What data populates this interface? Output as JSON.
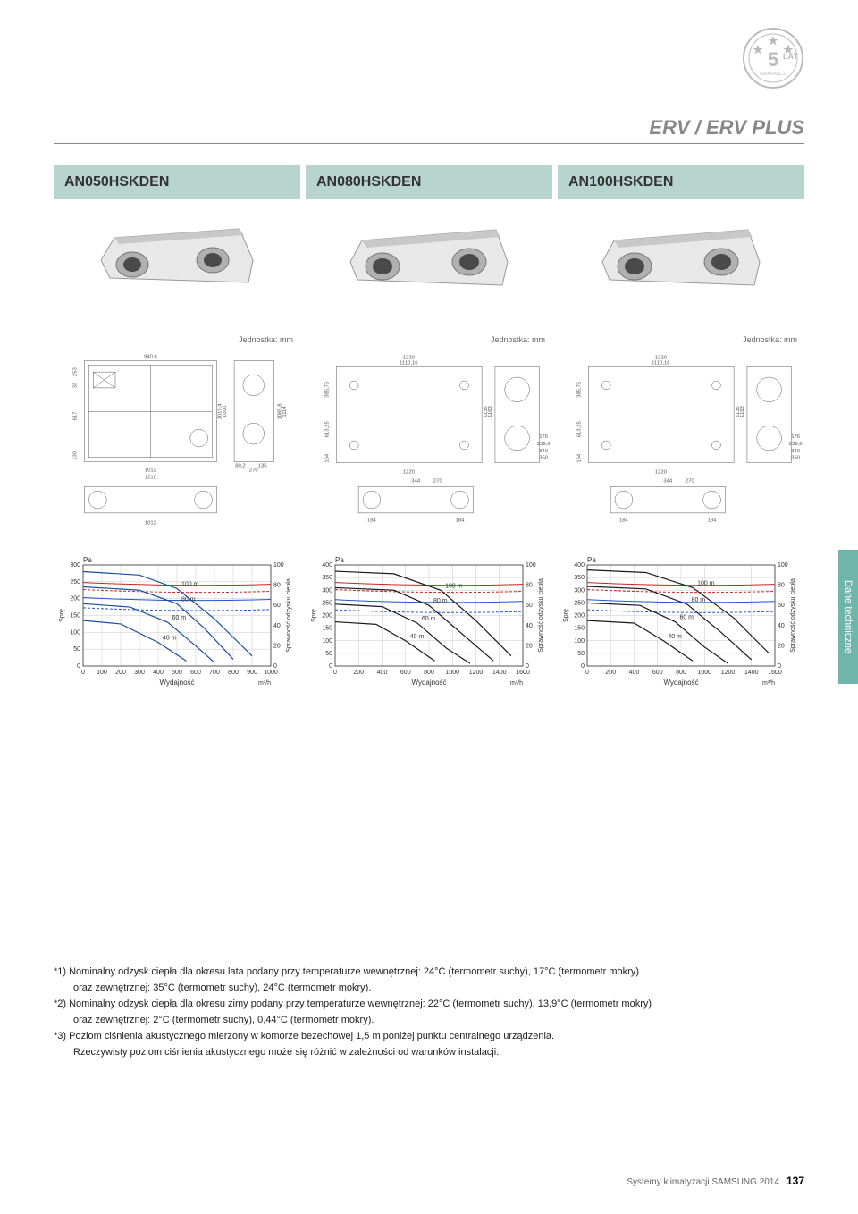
{
  "warranty": {
    "years": "5",
    "unit": "LAT",
    "sub": "GWARANCJI"
  },
  "header": {
    "title": "ERV / ERV PLUS"
  },
  "products": [
    {
      "model": "AN050HSKDEN"
    },
    {
      "model": "AN080HSKDEN"
    },
    {
      "model": "AN100HSKDEN"
    }
  ],
  "unit_label": "Jednostka: mm",
  "drawings": [
    {
      "dims": {
        "w_top": "940,6",
        "left_h": "253",
        "left_h2": "32",
        "left_h3": "617",
        "left_h4": "130",
        "inner_w": "1012",
        "outer_w": "1210",
        "right_h": "1000",
        "right_h2": "1019,4",
        "right_h3": "1085,8",
        "right_h4": "1114",
        "right_w": "270",
        "side1": "80,2",
        "side2": "135",
        "bottom_w": "1012"
      }
    },
    {
      "dims": {
        "top_w": "1220",
        "top_w2": "1110,16",
        "left_h": "385,75",
        "left_h2": "613,25",
        "left_h3": "164",
        "right_h": "1135",
        "right_h2": "1163",
        "side1": "176",
        "side2": "239,6",
        "side3": "340",
        "side4": "350",
        "bottom_w": "1220",
        "b1": "184",
        "b2": "344",
        "b3": "270"
      }
    },
    {
      "dims": {
        "top_w": "1220",
        "top_w2": "1110,16",
        "left_h": "385,75",
        "left_h2": "613,25",
        "left_h3": "164",
        "right_h": "1135",
        "right_h2": "1163",
        "side1": "176",
        "side2": "239,6",
        "side3": "340",
        "side4": "350",
        "bottom_w": "1220",
        "b1": "184",
        "b2": "344",
        "b3": "270"
      }
    }
  ],
  "charts": [
    {
      "type": "line",
      "y_label": "Pa",
      "y_left_label": "Sprę",
      "y_right_label": "Sprawność odzysku ciepła",
      "x_label": "Wydajność",
      "x_unit": "m³/h",
      "ylim": [
        0,
        300
      ],
      "ytick_step": 50,
      "y2lim": [
        0,
        100
      ],
      "y2tick_step": 20,
      "xlim": [
        0,
        1000
      ],
      "xtick_step": 100,
      "curves": [
        {
          "label": "100 m",
          "color": "#1a4e9c",
          "pts": [
            [
              0,
              280
            ],
            [
              300,
              270
            ],
            [
              500,
              230
            ],
            [
              700,
              140
            ],
            [
              900,
              30
            ]
          ]
        },
        {
          "label": "80 m",
          "color": "#1a4e9c",
          "pts": [
            [
              0,
              235
            ],
            [
              300,
              225
            ],
            [
              500,
              185
            ],
            [
              650,
              110
            ],
            [
              800,
              20
            ]
          ]
        },
        {
          "label": "60 m",
          "color": "#1a4e9c",
          "pts": [
            [
              0,
              185
            ],
            [
              250,
              175
            ],
            [
              450,
              130
            ],
            [
              600,
              60
            ],
            [
              700,
              10
            ]
          ]
        },
        {
          "label": "40 m",
          "color": "#1a4e9c",
          "pts": [
            [
              0,
              135
            ],
            [
              200,
              125
            ],
            [
              400,
              70
            ],
            [
              550,
              15
            ]
          ]
        }
      ],
      "eff_lines": [
        {
          "color": "#cc2222",
          "y": 80
        },
        {
          "color": "#cc2222",
          "y": 73,
          "dash": true
        },
        {
          "color": "#2255cc",
          "y": 65
        },
        {
          "color": "#2255cc",
          "y": 55,
          "dash": true
        }
      ],
      "grid_color": "#bbbbbb",
      "bg": "#ffffff",
      "font_size": 7
    },
    {
      "type": "line",
      "y_label": "Pa",
      "y_left_label": "Sprę",
      "y_right_label": "Sprawność odzysku ciepła",
      "x_label": "Wydajność",
      "x_unit": "m³/h",
      "ylim": [
        0,
        400
      ],
      "ytick_step": 50,
      "y2lim": [
        0,
        100
      ],
      "y2tick_step": 20,
      "xlim": [
        0,
        1600
      ],
      "xtick_step": 200,
      "curves": [
        {
          "label": "100 m",
          "color": "#1a1a1a",
          "pts": [
            [
              0,
              375
            ],
            [
              500,
              365
            ],
            [
              900,
              300
            ],
            [
              1200,
              180
            ],
            [
              1500,
              40
            ]
          ]
        },
        {
          "label": "80 m",
          "color": "#1a1a1a",
          "pts": [
            [
              0,
              310
            ],
            [
              500,
              300
            ],
            [
              800,
              240
            ],
            [
              1100,
              120
            ],
            [
              1350,
              20
            ]
          ]
        },
        {
          "label": "60 m",
          "color": "#1a1a1a",
          "pts": [
            [
              0,
              245
            ],
            [
              400,
              235
            ],
            [
              700,
              170
            ],
            [
              950,
              70
            ],
            [
              1150,
              10
            ]
          ]
        },
        {
          "label": "40 m",
          "color": "#1a1a1a",
          "pts": [
            [
              0,
              175
            ],
            [
              350,
              165
            ],
            [
              600,
              100
            ],
            [
              850,
              20
            ]
          ]
        }
      ],
      "eff_lines": [
        {
          "color": "#cc2222",
          "y": 80
        },
        {
          "color": "#cc2222",
          "y": 73,
          "dash": true
        },
        {
          "color": "#2255cc",
          "y": 63
        },
        {
          "color": "#2255cc",
          "y": 53,
          "dash": true
        }
      ],
      "grid_color": "#bbbbbb",
      "bg": "#ffffff",
      "font_size": 7
    },
    {
      "type": "line",
      "y_label": "Pa",
      "y_left_label": "Sprę",
      "y_right_label": "Sprawność odzysku ciepła",
      "x_label": "Wydajność",
      "x_unit": "m³/h",
      "ylim": [
        0,
        400
      ],
      "ytick_step": 50,
      "y2lim": [
        0,
        100
      ],
      "y2tick_step": 20,
      "xlim": [
        0,
        1600
      ],
      "xtick_step": 200,
      "curves": [
        {
          "label": "100 m",
          "color": "#1a1a1a",
          "pts": [
            [
              0,
              380
            ],
            [
              500,
              370
            ],
            [
              900,
              310
            ],
            [
              1250,
              190
            ],
            [
              1550,
              50
            ]
          ]
        },
        {
          "label": "80 m",
          "color": "#1a1a1a",
          "pts": [
            [
              0,
              315
            ],
            [
              500,
              305
            ],
            [
              850,
              245
            ],
            [
              1150,
              130
            ],
            [
              1400,
              25
            ]
          ]
        },
        {
          "label": "60 m",
          "color": "#1a1a1a",
          "pts": [
            [
              0,
              250
            ],
            [
              450,
              240
            ],
            [
              750,
              175
            ],
            [
              1000,
              75
            ],
            [
              1200,
              10
            ]
          ]
        },
        {
          "label": "40 m",
          "color": "#1a1a1a",
          "pts": [
            [
              0,
              180
            ],
            [
              400,
              170
            ],
            [
              650,
              100
            ],
            [
              900,
              20
            ]
          ]
        }
      ],
      "eff_lines": [
        {
          "color": "#cc2222",
          "y": 80
        },
        {
          "color": "#cc2222",
          "y": 73,
          "dash": true
        },
        {
          "color": "#2255cc",
          "y": 63
        },
        {
          "color": "#2255cc",
          "y": 53,
          "dash": true
        }
      ],
      "grid_color": "#bbbbbb",
      "bg": "#ffffff",
      "font_size": 7
    }
  ],
  "sidebar": {
    "label": "Dane techniczne"
  },
  "footnotes": [
    "*1) Nominalny odzysk ciepła dla okresu lata podany przy temperaturze wewnętrznej: 24°C (termometr suchy), 17°C (termometr mokry)",
    "oraz zewnętrznej: 35°C (termometr suchy), 24°C (termometr mokry).",
    "*2) Nominalny odzysk ciepła dla okresu zimy podany przy temperaturze wewnętrznej: 22°C (termometr suchy), 13,9°C (termometr mokry)",
    "oraz zewnętrznej: 2°C (termometr suchy), 0,44°C (termometr mokry).",
    "*3) Poziom ciśnienia akustycznego mierzony w komorze bezechowej 1,5 m poniżej punktu centralnego urządzenia.",
    "Rzeczywisty poziom ciśnienia akustycznego może się różnić w zależności od warunków instalacji."
  ],
  "footer": {
    "text": "Systemy klimatyzacji SAMSUNG 2014",
    "page": "137"
  },
  "colors": {
    "teal_light": "#b7d4cf",
    "teal": "#6fb5aa",
    "grey": "#888888"
  }
}
